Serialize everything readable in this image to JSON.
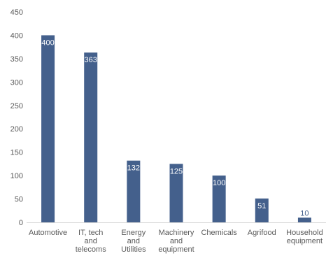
{
  "chart_data": {
    "type": "bar",
    "title": "",
    "xlabel": "",
    "ylabel": "",
    "ylim": [
      0,
      450
    ],
    "yticks": [
      0,
      50,
      100,
      150,
      200,
      250,
      300,
      350,
      400,
      450
    ],
    "grid": false,
    "legend": "none",
    "categories": [
      [
        "Automotive"
      ],
      [
        "IT, tech",
        "and",
        "telecoms"
      ],
      [
        "Energy",
        "and",
        "Utilities"
      ],
      [
        "Machinery",
        "and",
        "equipment"
      ],
      [
        "Chemicals"
      ],
      [
        "Agrifood"
      ],
      [
        "Household",
        "equipment"
      ]
    ],
    "values": [
      400,
      363,
      132,
      125,
      100,
      51,
      10
    ],
    "bar_color": "#44608c",
    "label_color_inside": "#ffffff",
    "label_color_outside": "#44608c"
  }
}
